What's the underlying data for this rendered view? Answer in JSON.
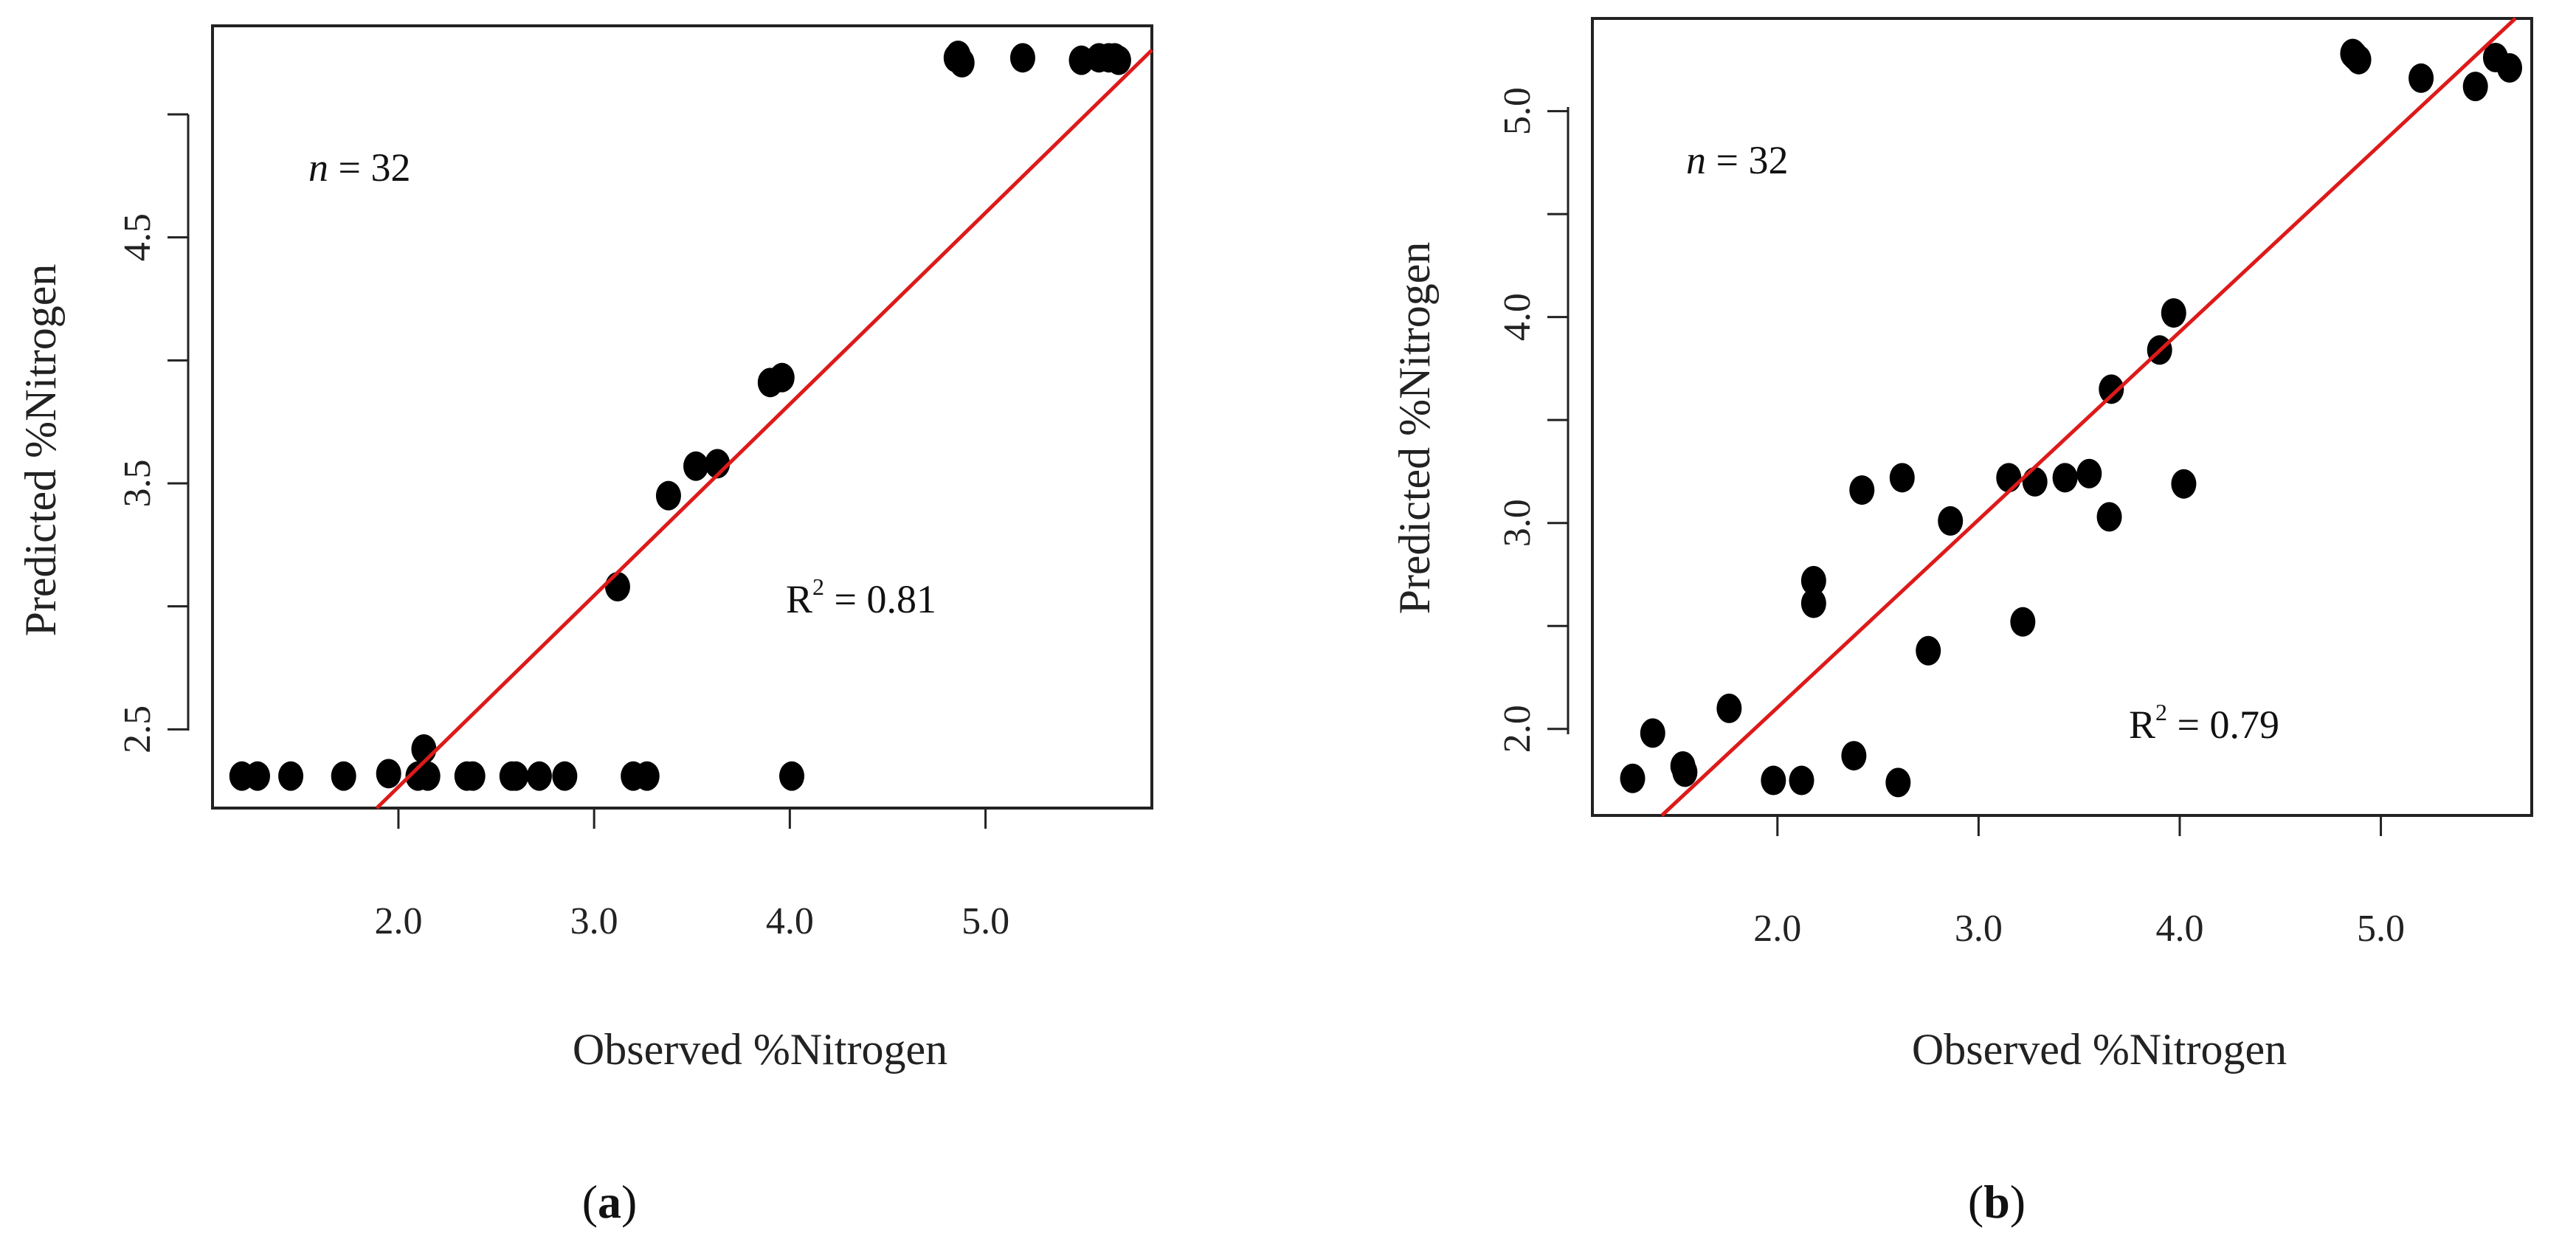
{
  "colors": {
    "point": "#000000",
    "fit_line": "#dd1a1a",
    "frame": "#222222"
  },
  "chart_data": [
    {
      "type": "scatter",
      "panel": "a",
      "caption_open": "(",
      "caption_letter": "a",
      "caption_close": ")",
      "xlabel": "Observed  %Nitrogen",
      "ylabel": "Predicted  %Nitrogen",
      "xlim": [
        1.05,
        5.85
      ],
      "ylim": [
        2.18,
        5.36
      ],
      "xticks": [
        2.0,
        3.0,
        4.0,
        5.0
      ],
      "xtick_labels": [
        "2.0",
        "3.0",
        "4.0",
        "5.0"
      ],
      "yticks": [
        2.5,
        3.5,
        4.5
      ],
      "ytick_labels": [
        "2.5",
        "3.5",
        "4.5"
      ],
      "minor_yticks": [
        3.0,
        4.0,
        5.0
      ],
      "n_label_italic": "n",
      "n_label_rest": " = 32",
      "r2_prefix": "R",
      "r2_sup": "2",
      "r2_suffix": " = 0.81",
      "fit_line": {
        "slope": 0.778,
        "intercept": 0.71
      },
      "points": [
        [
          1.2,
          2.31
        ],
        [
          1.28,
          2.31
        ],
        [
          1.45,
          2.31
        ],
        [
          1.72,
          2.31
        ],
        [
          1.95,
          2.32
        ],
        [
          2.1,
          2.31
        ],
        [
          2.13,
          2.42
        ],
        [
          2.15,
          2.31
        ],
        [
          2.35,
          2.31
        ],
        [
          2.38,
          2.31
        ],
        [
          2.58,
          2.31
        ],
        [
          2.6,
          2.31
        ],
        [
          2.72,
          2.31
        ],
        [
          2.85,
          2.31
        ],
        [
          3.12,
          3.08
        ],
        [
          3.2,
          2.31
        ],
        [
          3.27,
          2.31
        ],
        [
          3.38,
          3.45
        ],
        [
          3.52,
          3.57
        ],
        [
          3.63,
          3.58
        ],
        [
          3.9,
          3.91
        ],
        [
          3.96,
          3.93
        ],
        [
          4.01,
          2.31
        ],
        [
          4.85,
          5.23
        ],
        [
          4.88,
          5.21
        ],
        [
          5.19,
          5.23
        ],
        [
          5.49,
          5.22
        ],
        [
          5.58,
          5.23
        ],
        [
          5.63,
          5.23
        ],
        [
          5.66,
          5.23
        ],
        [
          5.68,
          5.22
        ],
        [
          4.86,
          5.24
        ]
      ]
    },
    {
      "type": "scatter",
      "panel": "b",
      "caption_open": "(",
      "caption_letter": "b",
      "caption_close": ")",
      "xlabel": "Observed  %Nitrogen",
      "ylabel": "Predicted  %Nitrogen",
      "xlim": [
        1.08,
        5.75
      ],
      "ylim": [
        1.58,
        5.45
      ],
      "xticks": [
        2.0,
        3.0,
        4.0,
        5.0
      ],
      "xtick_labels": [
        "2.0",
        "3.0",
        "4.0",
        "5.0"
      ],
      "yticks": [
        2.0,
        3.0,
        4.0,
        5.0
      ],
      "ytick_labels": [
        "2.0",
        "3.0",
        "4.0",
        "5.0"
      ],
      "minor_yticks": [
        2.5,
        3.5,
        4.5
      ],
      "n_label_italic": "n",
      "n_label_rest": " = 32",
      "r2_prefix": "R",
      "r2_sup": "2",
      "r2_suffix": " = 0.79",
      "fit_line": {
        "slope": 0.912,
        "intercept": 0.28
      },
      "points": [
        [
          1.28,
          1.76
        ],
        [
          1.38,
          1.98
        ],
        [
          1.53,
          1.82
        ],
        [
          1.54,
          1.79
        ],
        [
          1.76,
          2.1
        ],
        [
          1.98,
          1.75
        ],
        [
          2.12,
          1.75
        ],
        [
          2.18,
          2.72
        ],
        [
          2.18,
          2.61
        ],
        [
          2.38,
          1.87
        ],
        [
          2.42,
          3.16
        ],
        [
          2.6,
          1.74
        ],
        [
          2.62,
          3.22
        ],
        [
          2.75,
          2.38
        ],
        [
          2.86,
          3.01
        ],
        [
          3.15,
          3.22
        ],
        [
          3.22,
          2.52
        ],
        [
          3.28,
          3.2
        ],
        [
          3.43,
          3.22
        ],
        [
          3.55,
          3.24
        ],
        [
          3.65,
          3.03
        ],
        [
          3.66,
          3.65
        ],
        [
          3.9,
          3.84
        ],
        [
          3.97,
          4.02
        ],
        [
          4.02,
          3.19
        ],
        [
          4.87,
          5.27
        ],
        [
          4.89,
          5.25
        ],
        [
          5.2,
          5.16
        ],
        [
          5.47,
          5.12
        ],
        [
          5.57,
          5.26
        ],
        [
          5.64,
          5.21
        ],
        [
          4.86,
          5.28
        ]
      ]
    }
  ]
}
